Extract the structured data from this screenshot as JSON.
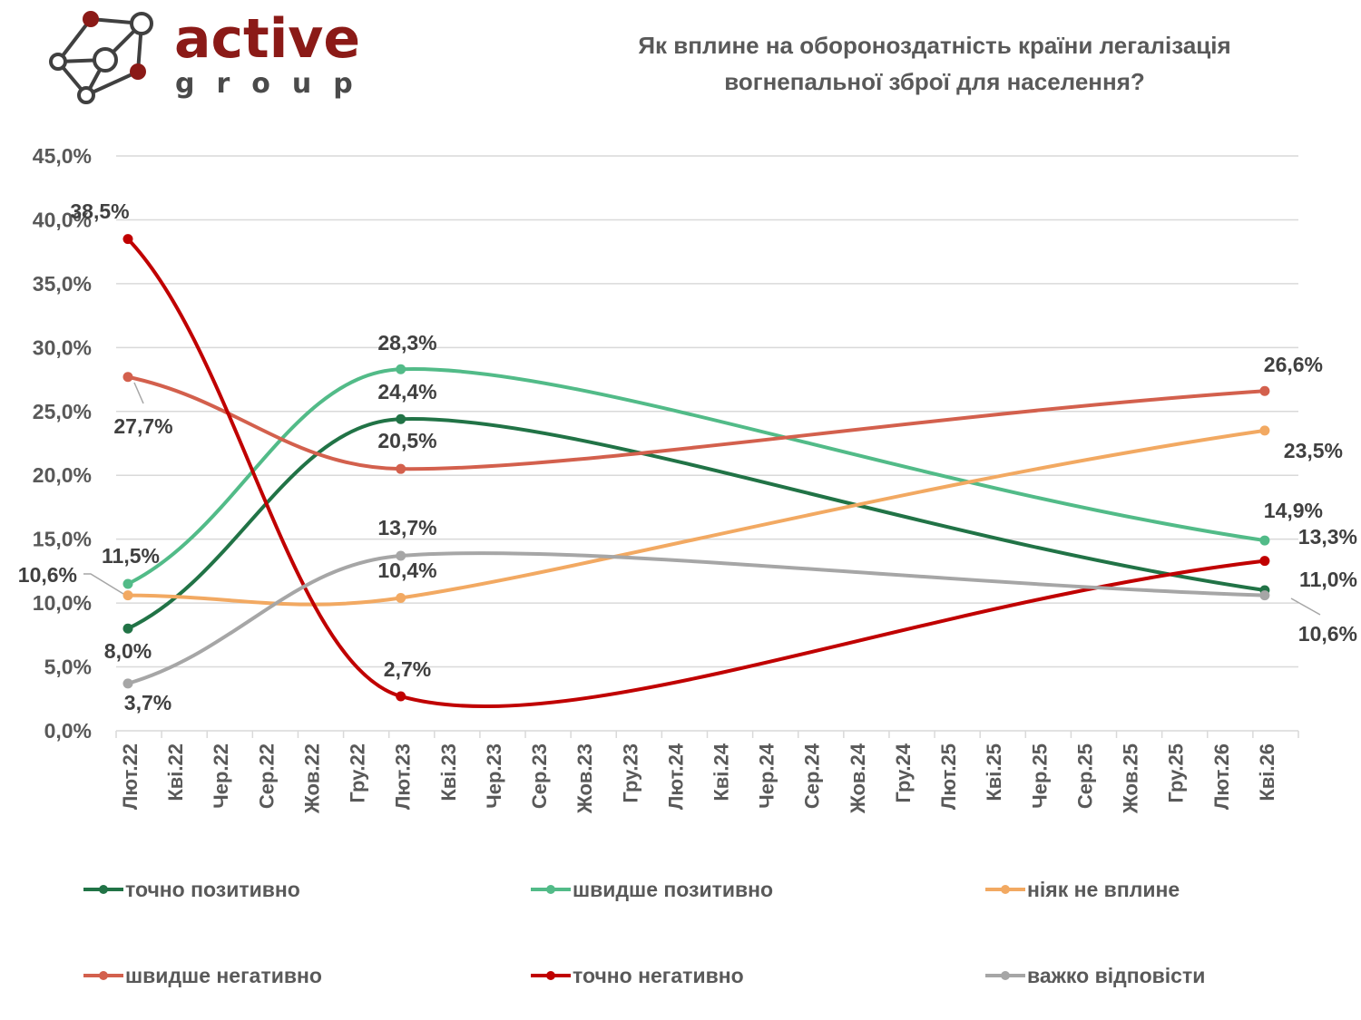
{
  "logo": {
    "word": "active",
    "sub": "group",
    "brand_color": "#8b1a17"
  },
  "title": {
    "line1": "Як вплине на обороноздатність країни легалізація",
    "line2": "вогнепальної зброї для населення?"
  },
  "chart_data": {
    "type": "line",
    "title": "Як вплине на обороноздатність країни легалізація вогнепальної зброї для населення?",
    "xlabel": "",
    "ylabel": "",
    "ylim": [
      0,
      45
    ],
    "yticks": [
      "0,0%",
      "5,0%",
      "10,0%",
      "15,0%",
      "20,0%",
      "25,0%",
      "30,0%",
      "35,0%",
      "40,0%",
      "45,0%"
    ],
    "ytick_values": [
      0,
      5,
      10,
      15,
      20,
      25,
      30,
      35,
      40,
      45
    ],
    "grid": true,
    "legend_position": "bottom",
    "categories": [
      "Лют.22",
      "Кві.22",
      "Чер.22",
      "Сер.22",
      "Жов.22",
      "Гру.22",
      "Лют.23",
      "Кві.23",
      "Чер.23",
      "Сер.23",
      "Жов.23",
      "Гру.23",
      "Лют.24",
      "Кві.24",
      "Чер.24",
      "Сер.24",
      "Жов.24",
      "Гру.24",
      "Лют.25",
      "Кві.25",
      "Чер.25",
      "Сер.25",
      "Жов.25",
      "Гру.25",
      "Лют.26",
      "Кві.26"
    ],
    "x_points": [
      "Лют.22",
      "Лют.23",
      "Кві.26"
    ],
    "smooth": true,
    "series": [
      {
        "name": "точно позитивно",
        "color": "#217346",
        "values": [
          8.0,
          24.4,
          11.0
        ],
        "labels": [
          "8,0%",
          "24,4%",
          "11,0%"
        ]
      },
      {
        "name": "швидше позитивно",
        "color": "#52bb88",
        "values": [
          11.5,
          28.3,
          14.9
        ],
        "labels": [
          "11,5%",
          "28,3%",
          "14,9%"
        ]
      },
      {
        "name": "ніяк не вплине",
        "color": "#f2a962",
        "values": [
          10.6,
          10.4,
          23.5
        ],
        "labels": [
          "10,6%",
          "10,4%",
          "23,5%"
        ]
      },
      {
        "name": "швидше негативно",
        "color": "#d3604d",
        "values": [
          27.7,
          20.5,
          26.6
        ],
        "labels": [
          "27,7%",
          "20,5%",
          "26,6%"
        ]
      },
      {
        "name": "точно негативно",
        "color": "#c00000",
        "values": [
          38.5,
          2.7,
          13.3
        ],
        "labels": [
          "38,5%",
          "2,7%",
          "13,3%"
        ]
      },
      {
        "name": "важко відповісти",
        "color": "#a6a6a6",
        "values": [
          3.7,
          13.7,
          10.6
        ],
        "labels": [
          "3,7%",
          "13,7%",
          "10,6%"
        ]
      }
    ]
  }
}
